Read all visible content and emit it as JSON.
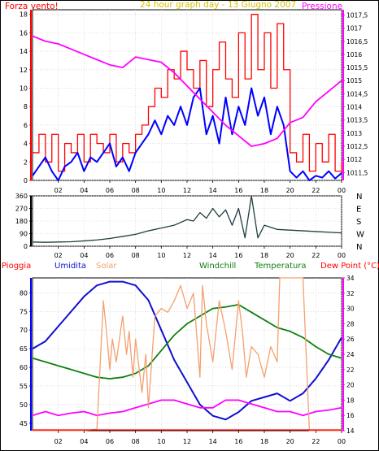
{
  "colors": {
    "wind": "#ff0000",
    "pressure": "#ff00ff",
    "gust": "#0000ff",
    "direction": "#1f3f3f",
    "humidity": "#1010d0",
    "solar": "#f4a070",
    "temperature": "#108010",
    "dewpoint": "#ff00ff",
    "rain": "#ff0000",
    "title": "#d4c000",
    "axis_left": "#ff0000",
    "axis_right": "#ff00ff",
    "axis_left_bottom": "#0000ff"
  },
  "chart_data": [
    {
      "type": "line",
      "title": "24 hour graph day - 13 Giugno 2007",
      "ylabel": "Forza vento!",
      "y2label": "Pressione",
      "xticks": [
        "02",
        "04",
        "06",
        "08",
        "10",
        "12",
        "14",
        "16",
        "18",
        "20",
        "22",
        "00"
      ],
      "ylim": [
        0,
        18.5
      ],
      "yticks": [
        "0",
        "2",
        "4",
        "6",
        "8",
        "10",
        "12",
        "14",
        "16",
        "18"
      ],
      "y2lim": [
        1011.2,
        1017.7
      ],
      "y2ticks": [
        "1011,5",
        "1012",
        "1012,5",
        "1013",
        "1013,5",
        "1014",
        "1014,5",
        "1015",
        "1015,5",
        "1016",
        "1016,5",
        "1017",
        "1017,5"
      ],
      "grid": true,
      "series": [
        {
          "key": "wind",
          "x": [
            0,
            0.5,
            1,
            1.5,
            2,
            2.5,
            3,
            3.5,
            4,
            4.5,
            5,
            5.5,
            6,
            6.5,
            7,
            7.5,
            8,
            8.5,
            9,
            9.5,
            10,
            10.5,
            11,
            11.5,
            12,
            12.5,
            13,
            13.5,
            14,
            14.5,
            15,
            15.5,
            16,
            16.5,
            17,
            17.5,
            18,
            18.5,
            19,
            19.5,
            20,
            20.5,
            21,
            21.5,
            22,
            22.5,
            23,
            23.5,
            24
          ],
          "values": [
            3,
            5,
            2,
            5,
            1,
            4,
            3,
            5,
            2,
            5,
            4,
            3,
            5,
            2,
            4,
            3,
            5,
            6,
            8,
            10,
            9,
            12,
            11,
            14,
            12,
            10,
            13,
            8,
            12,
            15,
            11,
            9,
            16,
            11,
            18,
            12,
            16,
            10,
            17,
            12,
            3,
            2,
            5,
            1,
            4,
            2,
            5,
            1,
            2
          ]
        },
        {
          "key": "gust",
          "x": [
            0,
            0.5,
            1,
            1.5,
            2,
            2.5,
            3,
            3.5,
            4,
            4.5,
            5,
            5.5,
            6,
            6.5,
            7,
            7.5,
            8,
            8.5,
            9,
            9.5,
            10,
            10.5,
            11,
            11.5,
            12,
            12.5,
            13,
            13.5,
            14,
            14.5,
            15,
            15.5,
            16,
            16.5,
            17,
            17.5,
            18,
            18.5,
            19,
            19.5,
            20,
            20.5,
            21,
            21.5,
            22,
            22.5,
            23,
            23.5,
            24
          ],
          "values": [
            0.5,
            1.5,
            2.5,
            1,
            0,
            1.5,
            2,
            3,
            1,
            2.5,
            2,
            3,
            4,
            1.5,
            2.5,
            1,
            3,
            4,
            5,
            6.5,
            5,
            7,
            6,
            8,
            6,
            9,
            10,
            5,
            7,
            4,
            9,
            5,
            8,
            6,
            10,
            7,
            9,
            5,
            8,
            6,
            1,
            0.3,
            1,
            0,
            0.5,
            0.3,
            1,
            0.2,
            0.8
          ]
        },
        {
          "key": "pressure",
          "axis": "right",
          "x": [
            0,
            1,
            2,
            3,
            4,
            5,
            6,
            7,
            8,
            9,
            10,
            11,
            12,
            13,
            14,
            15,
            16,
            17,
            18,
            19,
            20,
            21,
            22,
            23,
            24
          ],
          "values": [
            1016.7,
            1016.5,
            1016.4,
            1016.2,
            1016.0,
            1015.8,
            1015.6,
            1015.5,
            1015.9,
            1015.8,
            1015.7,
            1015.3,
            1014.8,
            1014.3,
            1013.8,
            1013.3,
            1012.9,
            1012.5,
            1012.6,
            1012.8,
            1013.4,
            1013.6,
            1014.2,
            1014.6,
            1015.0
          ]
        }
      ]
    },
    {
      "type": "line",
      "xticks": [
        "02",
        "04",
        "06",
        "08",
        "10",
        "12",
        "14",
        "16",
        "18",
        "20",
        "22",
        "00"
      ],
      "ylim": [
        0,
        360
      ],
      "yticks": [
        "0",
        "90",
        "180",
        "270",
        "360"
      ],
      "direction_labels": [
        "N",
        "W",
        "S",
        "E",
        "N"
      ],
      "grid": true,
      "series": [
        {
          "key": "direction",
          "x": [
            0,
            1,
            2,
            3,
            4,
            5,
            6,
            7,
            8,
            9,
            10,
            11,
            12,
            12.5,
            13,
            13.5,
            14,
            14.5,
            15,
            15.5,
            16,
            16.5,
            17,
            17.5,
            18,
            19,
            20,
            21,
            22,
            23,
            24
          ],
          "values": [
            30,
            28,
            30,
            32,
            38,
            45,
            55,
            70,
            85,
            110,
            130,
            150,
            190,
            180,
            240,
            200,
            270,
            210,
            260,
            150,
            270,
            60,
            360,
            60,
            150,
            120,
            115,
            110,
            105,
            100,
            95
          ]
        }
      ]
    },
    {
      "type": "line",
      "legend": [
        "Pioggia",
        "Umidita",
        "Solar",
        "Windchill",
        "Temperatura",
        "Dew Point (°C)"
      ],
      "legend_position": "top",
      "xticks": [
        "02",
        "04",
        "06",
        "08",
        "10",
        "12",
        "14",
        "16",
        "18",
        "20",
        "22",
        "00"
      ],
      "ylim": [
        43,
        84
      ],
      "yticks": [
        "45",
        "50",
        "55",
        "60",
        "65",
        "70",
        "75",
        "80"
      ],
      "y2lim": [
        14,
        34
      ],
      "y2ticks": [
        "14",
        "16",
        "18",
        "20",
        "22",
        "24",
        "26",
        "28",
        "30",
        "32",
        "34"
      ],
      "grid": true,
      "series": [
        {
          "key": "humidity",
          "name": "Umidita",
          "x": [
            0,
            1,
            2,
            3,
            4,
            5,
            6,
            7,
            8,
            9,
            10,
            11,
            12,
            13,
            14,
            15,
            16,
            17,
            18,
            19,
            20,
            21,
            22,
            23,
            24
          ],
          "values": [
            65,
            67,
            71,
            75,
            79,
            82,
            83,
            83,
            82,
            78,
            70,
            62,
            56,
            50,
            47,
            46,
            48,
            51,
            52,
            53,
            51,
            53,
            57,
            62,
            68
          ]
        },
        {
          "key": "temperature",
          "name": "Temperatura",
          "axis": "right",
          "x": [
            0,
            1,
            2,
            3,
            4,
            5,
            6,
            7,
            8,
            9,
            10,
            11,
            12,
            13,
            14,
            15,
            16,
            17,
            18,
            19,
            20,
            21,
            22,
            23,
            24
          ],
          "values": [
            23.5,
            23,
            22.5,
            22,
            21.5,
            21,
            20.8,
            21,
            21.5,
            22.5,
            24.5,
            26.5,
            28,
            29,
            30,
            30.2,
            30.5,
            29.5,
            28.5,
            27.5,
            27,
            26.2,
            25,
            24,
            23.5
          ]
        },
        {
          "key": "dewpoint",
          "name": "Dew Point (°C)",
          "axis": "right",
          "x": [
            0,
            1,
            2,
            3,
            4,
            5,
            6,
            7,
            8,
            9,
            10,
            11,
            12,
            13,
            14,
            15,
            16,
            17,
            18,
            19,
            20,
            21,
            22,
            23,
            24
          ],
          "values": [
            16,
            16.5,
            16,
            16.3,
            16.5,
            16,
            16.3,
            16.5,
            17,
            17.5,
            18,
            18,
            17.5,
            17,
            17,
            18,
            18,
            17.5,
            17,
            16.5,
            16.5,
            16,
            16.5,
            16.7,
            17
          ]
        },
        {
          "key": "solar",
          "name": "Solar",
          "axis": "right",
          "x": [
            0,
            4,
            5,
            5.5,
            5.8,
            6,
            6.2,
            6.5,
            7,
            7.3,
            7.5,
            7.8,
            8,
            8.5,
            8.8,
            9,
            9.5,
            10,
            10.5,
            11,
            11.5,
            12,
            12.5,
            13,
            13.2,
            13.5,
            14,
            14.5,
            15,
            15.5,
            16,
            16.3,
            16.6,
            17,
            17.5,
            18,
            18.5,
            19,
            19.2,
            19.5,
            20,
            20.5,
            21,
            21.5,
            22,
            24
          ],
          "values": [
            14,
            14,
            14.2,
            31,
            26,
            22,
            26,
            23,
            29,
            24,
            27,
            21,
            26,
            19,
            24,
            17,
            29,
            30,
            29.5,
            31,
            33,
            30,
            32,
            21,
            33,
            28,
            23,
            31,
            27,
            22,
            31,
            27,
            21,
            25,
            24,
            21,
            25,
            23,
            34,
            34,
            34,
            34,
            34,
            14,
            14,
            14
          ]
        },
        {
          "key": "rain",
          "name": "Pioggia",
          "x": [
            0,
            24
          ],
          "values": [
            43.2,
            43.2
          ]
        }
      ]
    }
  ]
}
